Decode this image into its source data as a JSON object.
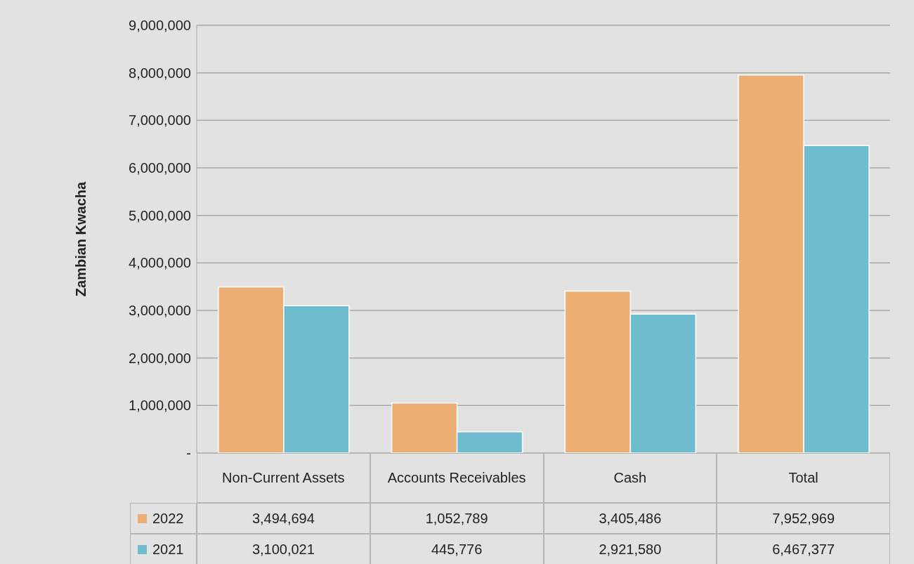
{
  "chart_data": {
    "type": "bar",
    "ylabel": "Zambian Kwacha",
    "categories": [
      "Non-Current Assets",
      "Accounts Receivables",
      "Cash",
      "Total"
    ],
    "series": [
      {
        "name": "2022",
        "color": "#edae74",
        "values": [
          3494694,
          1052789,
          3405486,
          7952969
        ],
        "value_labels": [
          "3,494,694",
          "1,052,789",
          "3,405,486",
          "7,952,969"
        ]
      },
      {
        "name": "2021",
        "color": "#6fbccf",
        "values": [
          3100021,
          445776,
          2921580,
          6467377
        ],
        "value_labels": [
          "3,100,021",
          "445,776",
          "2,921,580",
          "6,467,377"
        ]
      }
    ],
    "ylim": [
      0,
      9000000
    ],
    "yticks": [
      {
        "value": 0,
        "label": "-"
      },
      {
        "value": 1000000,
        "label": "1,000,000"
      },
      {
        "value": 2000000,
        "label": "2,000,000"
      },
      {
        "value": 3000000,
        "label": "3,000,000"
      },
      {
        "value": 4000000,
        "label": "4,000,000"
      },
      {
        "value": 5000000,
        "label": "5,000,000"
      },
      {
        "value": 6000000,
        "label": "6,000,000"
      },
      {
        "value": 7000000,
        "label": "7,000,000"
      },
      {
        "value": 8000000,
        "label": "8,000,000"
      },
      {
        "value": 9000000,
        "label": "9,000,000"
      }
    ],
    "grid": "y",
    "legend": "bottom left"
  }
}
